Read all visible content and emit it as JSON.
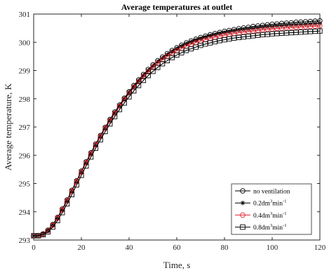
{
  "chart_data": {
    "type": "line",
    "title": "Average temperatures at outlet",
    "xlabel": "Time, s",
    "ylabel": "Average temperature, K",
    "xlim": [
      0,
      120
    ],
    "ylim": [
      293,
      301
    ],
    "xticks": [
      0,
      20,
      40,
      60,
      80,
      100,
      120
    ],
    "yticks": [
      293,
      294,
      295,
      296,
      297,
      298,
      299,
      300,
      301
    ],
    "grid": false,
    "legend_position": "bottom-right",
    "legend": [
      {
        "text": "no ventilation",
        "unit": "",
        "sup": "",
        "unit2": "",
        "sup2": ""
      },
      {
        "text": "0.2dm",
        "unit": "",
        "sup": "3",
        "unit2": "min",
        "sup2": "-1"
      },
      {
        "text": "0.4dm",
        "unit": "",
        "sup": "3",
        "unit2": "min",
        "sup2": "-1"
      },
      {
        "text": "0.8dm",
        "unit": "",
        "sup": "3",
        "unit2": "min",
        "sup2": "-1"
      }
    ],
    "x": [
      0,
      2,
      4,
      6,
      8,
      10,
      12,
      14,
      16,
      18,
      20,
      22,
      24,
      26,
      28,
      30,
      32,
      34,
      36,
      38,
      40,
      42,
      44,
      46,
      48,
      50,
      52,
      54,
      56,
      58,
      60,
      62,
      64,
      66,
      68,
      70,
      72,
      74,
      76,
      78,
      80,
      82,
      84,
      86,
      88,
      90,
      92,
      94,
      96,
      98,
      100,
      102,
      104,
      106,
      108,
      110,
      112,
      114,
      116,
      118,
      120
    ],
    "series": [
      {
        "name": "no ventilation",
        "color": "#000000",
        "marker": "circle",
        "values": [
          293.15,
          293.16,
          293.22,
          293.35,
          293.55,
          293.8,
          294.1,
          294.42,
          294.76,
          295.1,
          295.44,
          295.77,
          296.09,
          296.4,
          296.7,
          296.99,
          297.27,
          297.53,
          297.78,
          298.02,
          298.25,
          298.47,
          298.67,
          298.86,
          299.04,
          299.2,
          299.35,
          299.48,
          299.6,
          299.71,
          299.81,
          299.9,
          299.98,
          300.05,
          300.11,
          300.17,
          300.22,
          300.27,
          300.31,
          300.35,
          300.39,
          300.42,
          300.45,
          300.48,
          300.51,
          300.53,
          300.56,
          300.58,
          300.6,
          300.62,
          300.64,
          300.65,
          300.67,
          300.68,
          300.69,
          300.71,
          300.72,
          300.73,
          300.74,
          300.75,
          300.76
        ]
      },
      {
        "name": "0.2dm3min-1",
        "color": "#000000",
        "marker": "star",
        "values": [
          293.15,
          293.16,
          293.22,
          293.34,
          293.54,
          293.79,
          294.08,
          294.4,
          294.74,
          295.08,
          295.42,
          295.75,
          296.07,
          296.38,
          296.68,
          296.97,
          297.25,
          297.51,
          297.76,
          298.0,
          298.23,
          298.44,
          298.64,
          298.83,
          299.0,
          299.16,
          299.31,
          299.44,
          299.56,
          299.67,
          299.77,
          299.86,
          299.94,
          300.01,
          300.07,
          300.13,
          300.18,
          300.23,
          300.27,
          300.31,
          300.34,
          300.37,
          300.4,
          300.43,
          300.45,
          300.47,
          300.49,
          300.51,
          300.53,
          300.55,
          300.56,
          300.58,
          300.59,
          300.6,
          300.61,
          300.62,
          300.63,
          300.64,
          300.65,
          300.66,
          300.67
        ]
      },
      {
        "name": "0.4dm3min-1",
        "color": "#e8202a",
        "marker": "circle",
        "values": [
          293.15,
          293.16,
          293.21,
          293.33,
          293.52,
          293.77,
          294.06,
          294.38,
          294.72,
          295.06,
          295.4,
          295.73,
          296.05,
          296.36,
          296.66,
          296.95,
          297.22,
          297.48,
          297.73,
          297.97,
          298.19,
          298.4,
          298.6,
          298.78,
          298.95,
          299.11,
          299.25,
          299.38,
          299.5,
          299.6,
          299.7,
          299.78,
          299.86,
          299.93,
          299.99,
          300.04,
          300.09,
          300.14,
          300.18,
          300.22,
          300.25,
          300.28,
          300.31,
          300.34,
          300.36,
          300.38,
          300.4,
          300.42,
          300.44,
          300.46,
          300.47,
          300.49,
          300.5,
          300.51,
          300.52,
          300.53,
          300.54,
          300.55,
          300.56,
          300.57,
          300.58
        ]
      },
      {
        "name": "0.8dm3min-1",
        "color": "#000000",
        "marker": "square",
        "values": [
          293.15,
          293.15,
          293.19,
          293.29,
          293.46,
          293.69,
          293.97,
          294.28,
          294.61,
          294.95,
          295.29,
          295.62,
          295.94,
          296.25,
          296.55,
          296.84,
          297.11,
          297.37,
          297.62,
          297.85,
          298.07,
          298.28,
          298.47,
          298.65,
          298.82,
          298.97,
          299.11,
          299.24,
          299.35,
          299.46,
          299.55,
          299.63,
          299.71,
          299.77,
          299.83,
          299.89,
          299.94,
          299.98,
          300.02,
          300.06,
          300.09,
          300.12,
          300.15,
          300.17,
          300.19,
          300.21,
          300.23,
          300.25,
          300.27,
          300.28,
          300.3,
          300.31,
          300.32,
          300.33,
          300.34,
          300.35,
          300.36,
          300.37,
          300.38,
          300.39,
          300.4
        ]
      }
    ]
  }
}
